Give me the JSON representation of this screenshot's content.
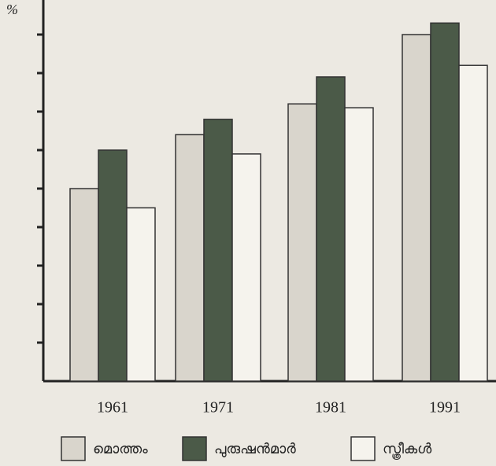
{
  "chart_data": {
    "type": "bar",
    "y_label": "%",
    "categories": [
      "1961",
      "1971",
      "1981",
      "1991"
    ],
    "series": [
      {
        "name": "മൊത്തം",
        "color": "#d9d5cc",
        "values": [
          50,
          64,
          72,
          90
        ]
      },
      {
        "name": "പുരുഷൻമാർ",
        "color": "#4b5a48",
        "values": [
          60,
          68,
          79,
          93
        ]
      },
      {
        "name": "സ്ത്രീകൾ",
        "color": "#f5f3ed",
        "values": [
          45,
          59,
          71,
          82
        ]
      }
    ],
    "ylim": [
      0,
      100
    ],
    "yticks": [
      10,
      20,
      30,
      40,
      50,
      60,
      70,
      80,
      90
    ],
    "grid": false
  }
}
